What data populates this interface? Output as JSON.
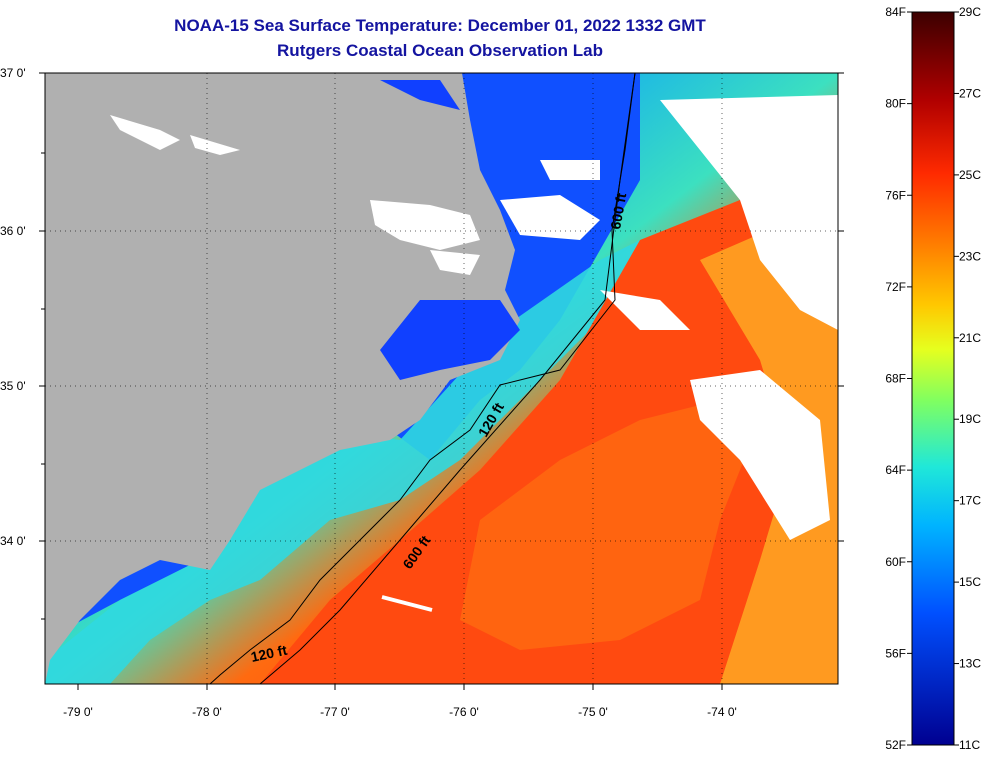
{
  "header": {
    "title": "NOAA-15 Sea Surface Temperature:  December 01, 2022 1332 GMT",
    "subtitle": "Rutgers Coastal Ocean Observation Lab"
  },
  "map": {
    "lat_labels": [
      "37 0'",
      "36 0'",
      "35 0'",
      "34 0'"
    ],
    "lon_labels": [
      "-79 0'",
      "-78 0'",
      "-77 0'",
      "-76 0'",
      "-75 0'",
      "-74 0'"
    ],
    "isobath_labels": [
      "600 ft",
      "120 ft",
      "600 ft",
      "120 ft"
    ]
  },
  "colorbar": {
    "fahrenheit_labels": [
      "84F",
      "80F",
      "76F",
      "72F",
      "68F",
      "64F",
      "60F",
      "56F",
      "52F"
    ],
    "celsius_labels": [
      "29C",
      "27C",
      "25C",
      "23C",
      "21C",
      "19C",
      "17C",
      "15C",
      "13C",
      "11C"
    ],
    "colors": [
      "#3c0000",
      "#8a0000",
      "#e01010",
      "#ff5a00",
      "#ff9a00",
      "#ffd200",
      "#e6ff1e",
      "#8cff5a",
      "#28f0c8",
      "#00c8ff",
      "#0078ff",
      "#0028e6",
      "#0000a0"
    ]
  }
}
